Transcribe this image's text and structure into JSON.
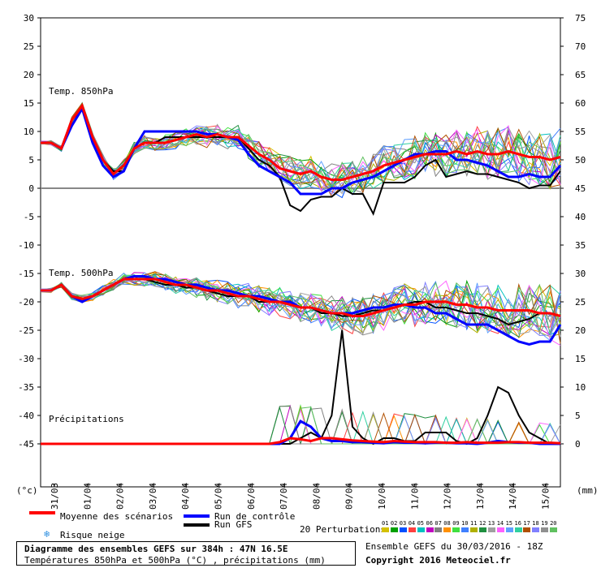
{
  "chart_data": {
    "type": "line",
    "left_axis": {
      "unit": "(°c)",
      "ticks": [
        30,
        25,
        20,
        15,
        10,
        5,
        0,
        -5,
        -10,
        -15,
        -20,
        -25,
        -30,
        -35,
        -40,
        -45
      ]
    },
    "right_axis": {
      "unit": "(mm)",
      "ticks": [
        75,
        70,
        65,
        60,
        55,
        50,
        45,
        40,
        35,
        30,
        25,
        20,
        15,
        10,
        5,
        0
      ]
    },
    "dates": [
      "31/03",
      "01/04",
      "02/04",
      "03/04",
      "04/04",
      "05/04",
      "06/04",
      "07/04",
      "08/04",
      "09/04",
      "10/04",
      "11/04",
      "12/04",
      "13/04",
      "14/04",
      "15/04"
    ],
    "panels": [
      {
        "title": "Temp. 850hPa",
        "unit": "°C",
        "mean": [
          8,
          8,
          7,
          12,
          14.5,
          9,
          5,
          2.5,
          4,
          7,
          8,
          8,
          8,
          8.5,
          9,
          9.5,
          9,
          9.5,
          9,
          9,
          7.5,
          6,
          5,
          3.5,
          3,
          2.5,
          3,
          2,
          1.5,
          1.5,
          2,
          2.5,
          3,
          4,
          4.5,
          5,
          5.5,
          6,
          6,
          6,
          6.5,
          6,
          6.5,
          6,
          6,
          6.5,
          6,
          5.5,
          5.5,
          5,
          5.5
        ],
        "control": [
          8,
          8,
          7,
          11,
          14,
          8,
          4,
          2,
          3,
          7,
          10,
          10,
          10,
          10,
          10,
          10,
          9.5,
          9.5,
          9,
          8.5,
          6,
          4,
          3,
          2,
          1,
          -1,
          -1,
          -1,
          0,
          0,
          1,
          1.5,
          2,
          3,
          4,
          5,
          6,
          6,
          6.5,
          6.5,
          5,
          5,
          4.5,
          4,
          3,
          2,
          2,
          2.5,
          2,
          2,
          4
        ],
        "gfs": [
          8,
          8,
          7,
          12,
          14,
          9,
          5,
          3,
          3,
          7,
          8,
          8,
          9,
          9,
          9,
          9,
          9,
          9,
          9,
          9,
          7,
          5,
          4,
          2,
          -3,
          -4,
          -2,
          -1.5,
          -1.5,
          0,
          -1,
          -1,
          -4.5,
          1,
          1,
          1,
          2,
          4,
          5,
          2,
          2.5,
          3,
          2.5,
          2.5,
          2,
          1.5,
          1,
          0,
          0.5,
          0.5,
          3
        ]
      },
      {
        "title": "Temp. 500hPa",
        "unit": "°C",
        "mean": [
          -18,
          -18,
          -17,
          -19,
          -19.5,
          -19,
          -18,
          -17,
          -16,
          -16,
          -16,
          -16,
          -16.5,
          -17,
          -17,
          -17.5,
          -18,
          -18,
          -18.5,
          -19,
          -19,
          -19.5,
          -20,
          -20,
          -20.5,
          -21,
          -21,
          -21.5,
          -22,
          -22,
          -22.5,
          -22.5,
          -22,
          -21.5,
          -21,
          -20.5,
          -20.5,
          -20,
          -20,
          -20,
          -20.5,
          -20.5,
          -21,
          -21,
          -21.5,
          -21.5,
          -21.5,
          -21.5,
          -22,
          -22,
          -22.5
        ],
        "control": [
          -18,
          -18,
          -17,
          -19,
          -20,
          -19,
          -18,
          -17,
          -16,
          -15.5,
          -15.5,
          -16,
          -16,
          -16.5,
          -17,
          -17,
          -17.5,
          -18,
          -18,
          -18.5,
          -19,
          -19,
          -19.5,
          -20,
          -20,
          -21,
          -21,
          -21.5,
          -22,
          -22,
          -22,
          -21.5,
          -21,
          -21,
          -20.5,
          -20.5,
          -21,
          -21,
          -22,
          -22,
          -23,
          -24,
          -24,
          -24,
          -25,
          -26,
          -27,
          -27.5,
          -27,
          -27,
          -24
        ],
        "gfs": [
          -18,
          -18,
          -17,
          -19,
          -19.5,
          -19,
          -18,
          -17,
          -16,
          -16,
          -16,
          -16.5,
          -17,
          -17,
          -17.5,
          -17.5,
          -18,
          -18.5,
          -19,
          -19,
          -19,
          -20,
          -20,
          -20,
          -20.5,
          -21,
          -21,
          -22,
          -22,
          -22.5,
          -22.5,
          -22,
          -21.5,
          -21.5,
          -21,
          -20.5,
          -20,
          -20,
          -21,
          -21,
          -21.5,
          -22,
          -22,
          -22.5,
          -23,
          -24,
          -23.5,
          -23,
          -22,
          -22,
          -22.5
        ]
      },
      {
        "title": "Précipitations",
        "unit": "mm",
        "mean": [
          0,
          0,
          0,
          0,
          0,
          0,
          0,
          0,
          0,
          0,
          0,
          0,
          0,
          0,
          0,
          0,
          0,
          0,
          0,
          0,
          0,
          0,
          0,
          0.3,
          1,
          0.8,
          0.5,
          1,
          1,
          0.8,
          0.6,
          0.5,
          0.4,
          0.3,
          0.5,
          0.4,
          0.3,
          0.3,
          0.3,
          0.2,
          0.2,
          0.3,
          0.2,
          0.2,
          0.2,
          0.3,
          0.3,
          0.2,
          0.2,
          0.2,
          0.1
        ],
        "control": [
          0,
          0,
          0,
          0,
          0,
          0,
          0,
          0,
          0,
          0,
          0,
          0,
          0,
          0,
          0,
          0,
          0,
          0,
          0,
          0,
          0,
          0,
          0,
          0,
          1,
          4,
          3,
          1,
          0.5,
          0.5,
          0.3,
          0.3,
          0.2,
          0.1,
          0.3,
          0.2,
          0.2,
          0.1,
          0.2,
          0.2,
          0.1,
          0.1,
          0,
          0.2,
          0.5,
          0.3,
          0.2,
          0.2,
          0,
          0,
          0
        ],
        "gfs": [
          0,
          0,
          0,
          0,
          0,
          0,
          0,
          0,
          0,
          0,
          0,
          0,
          0,
          0,
          0,
          0,
          0,
          0,
          0,
          0,
          0,
          0,
          0,
          0,
          0,
          1,
          2,
          1,
          5,
          20,
          3,
          1,
          0,
          1,
          1,
          0.5,
          0.5,
          2,
          2,
          2,
          0.5,
          0,
          1,
          5,
          10,
          9,
          5,
          2,
          1,
          0,
          0
        ]
      }
    ],
    "legend": {
      "mean": "Moyenne des scénarios",
      "control": "Run de contrôle",
      "gfs": "Run GFS",
      "snow": "Risque neige",
      "perturbations": "20 Perturbations"
    },
    "perturbation_labels": [
      "01",
      "02",
      "03",
      "04",
      "05",
      "06",
      "07",
      "08",
      "09",
      "10",
      "11",
      "12",
      "13",
      "14",
      "15",
      "16",
      "17",
      "18",
      "19",
      "20"
    ],
    "perturbation_colors": [
      "#d4c000",
      "#00a000",
      "#0050ff",
      "#ff4040",
      "#00c0c0",
      "#c000c0",
      "#808080",
      "#ff9000",
      "#40e040",
      "#4080ff",
      "#b0b000",
      "#209040",
      "#a0a0a0",
      "#ff60ff",
      "#60a0ff",
      "#30d0a0",
      "#b05000",
      "#8080ff",
      "#909090",
      "#60c060"
    ],
    "colors": {
      "mean": "#ff0000",
      "control": "#0000ff",
      "gfs": "#000000"
    }
  },
  "footer": {
    "title": "Diagramme des ensembles GEFS sur 384h : 47N 16.5E",
    "subtitle": "Températures 850hPa et 500hPa (°C) , précipitations (mm)",
    "run": "Ensemble GEFS du 30/03/2016 - 18Z",
    "copyright": "Copyright 2016 Meteociel.fr"
  }
}
